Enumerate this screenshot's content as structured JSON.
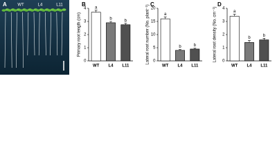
{
  "photo": {
    "panel": "A",
    "labels": [
      "WT",
      "L4",
      "L11"
    ]
  },
  "chart_data": [
    {
      "type": "bar",
      "panel": "B",
      "ylabel": "Primary root length (cm)",
      "categories": [
        "WT",
        "L4",
        "L11"
      ],
      "values": [
        3.7,
        2.9,
        2.75
      ],
      "errors": [
        0.15,
        0.1,
        0.1
      ],
      "annotations": [
        "a",
        "b",
        "b"
      ],
      "colors": [
        "#ffffff",
        "#7a7a7a",
        "#505050"
      ],
      "ylim": [
        0,
        4
      ],
      "yticks": [
        0,
        1,
        2,
        3,
        4
      ]
    },
    {
      "type": "bar",
      "panel": "C",
      "ylabel": "Lateral root number (No. plant⁻¹)",
      "categories": [
        "WT",
        "L4",
        "L11"
      ],
      "values": [
        16,
        4,
        4.5
      ],
      "errors": [
        0.7,
        0.3,
        0.4
      ],
      "annotations": [
        "a",
        "b",
        "b"
      ],
      "colors": [
        "#ffffff",
        "#7a7a7a",
        "#505050"
      ],
      "ylim": [
        0,
        20
      ],
      "yticks": [
        0,
        5,
        10,
        15,
        20
      ]
    },
    {
      "type": "bar",
      "panel": "D",
      "ylabel": "Lateral root density (No. cm⁻¹)",
      "categories": [
        "WT",
        "L4",
        "L11"
      ],
      "values": [
        3.4,
        1.4,
        1.6
      ],
      "errors": [
        0.15,
        0.15,
        0.12
      ],
      "annotations": [
        "a",
        "b",
        "b"
      ],
      "colors": [
        "#ffffff",
        "#7a7a7a",
        "#505050"
      ],
      "ylim": [
        0,
        4
      ],
      "yticks": [
        0,
        1,
        2,
        3,
        4
      ]
    }
  ]
}
